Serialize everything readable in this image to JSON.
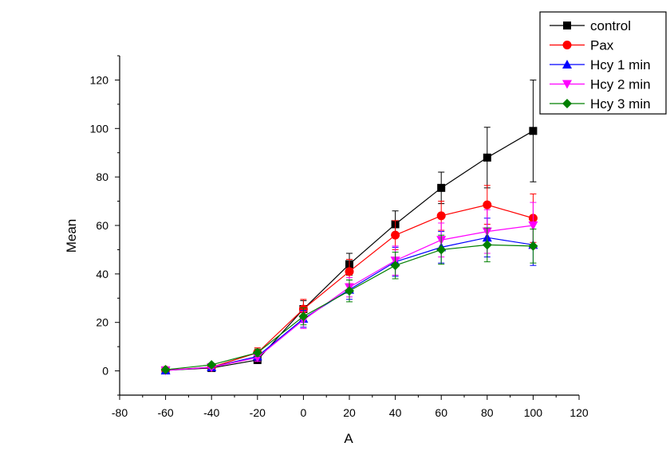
{
  "chart_data": {
    "type": "line",
    "title": "",
    "xlabel": "A",
    "ylabel": "Mean",
    "xlim": [
      -80,
      120
    ],
    "ylim": [
      -10,
      130
    ],
    "xticks": [
      -80,
      -60,
      -40,
      -20,
      0,
      20,
      40,
      60,
      80,
      100,
      120
    ],
    "yticks": [
      0,
      20,
      40,
      60,
      80,
      100,
      120
    ],
    "x": [
      -60,
      -40,
      -20,
      0,
      20,
      40,
      60,
      80,
      100
    ],
    "legend_position": "top-right",
    "series": [
      {
        "name": "control",
        "color": "#000000",
        "marker": "square",
        "values": [
          0.2,
          1.2,
          4.5,
          25.5,
          44,
          60.5,
          75.5,
          88,
          99
        ],
        "errors": [
          0.3,
          0.6,
          1.5,
          3.5,
          4.5,
          5.5,
          6.5,
          12.5,
          21
        ]
      },
      {
        "name": "Pax",
        "color": "#ff0000",
        "marker": "circle",
        "values": [
          0.3,
          1.5,
          7.5,
          25.5,
          41,
          56,
          64,
          68.5,
          63
        ],
        "errors": [
          0.4,
          0.7,
          2,
          4,
          5,
          6,
          6,
          8,
          10
        ]
      },
      {
        "name": "Hcy 1 min",
        "color": "#0000ff",
        "marker": "triangle-up",
        "values": [
          0.2,
          1.5,
          6,
          21.5,
          33.5,
          45,
          51,
          55,
          52
        ],
        "errors": [
          0.3,
          0.6,
          1.5,
          3.5,
          4,
          6,
          6.5,
          8,
          8.5
        ]
      },
      {
        "name": "Hcy 2 min",
        "color": "#ff00ff",
        "marker": "triangle-down",
        "values": [
          0.2,
          1.5,
          5.5,
          21,
          34.5,
          45.5,
          54,
          57.5,
          60
        ],
        "errors": [
          0.3,
          0.6,
          1.5,
          3.5,
          4,
          6,
          7,
          9,
          9.5
        ]
      },
      {
        "name": "Hcy 3 min",
        "color": "#008000",
        "marker": "diamond",
        "values": [
          0.5,
          2.5,
          7.5,
          22.5,
          33,
          43.5,
          50,
          52,
          51.5
        ],
        "errors": [
          0.3,
          0.6,
          1.5,
          3.5,
          4.5,
          5.5,
          6,
          7,
          7
        ]
      }
    ]
  }
}
